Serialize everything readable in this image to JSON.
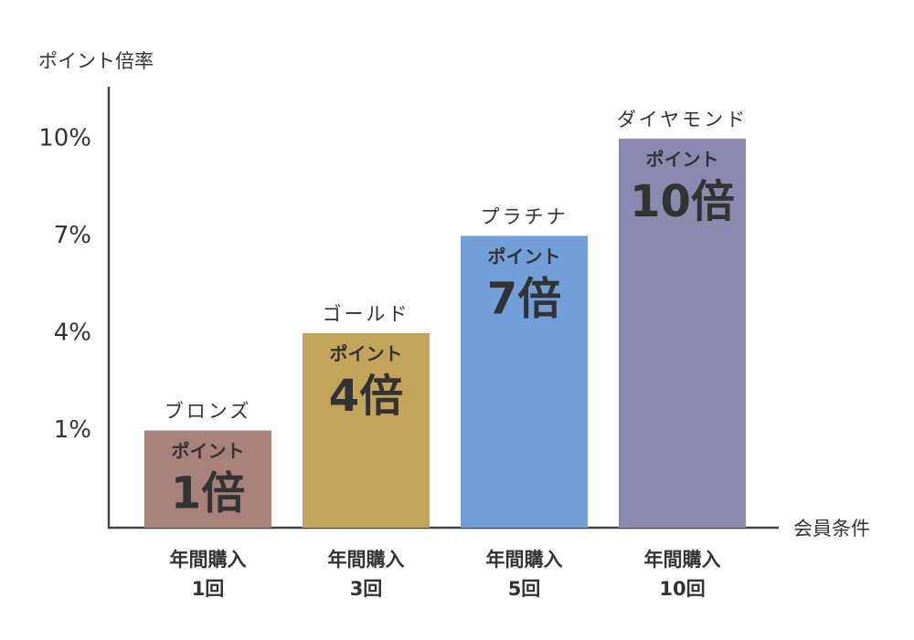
{
  "chart_data": {
    "type": "bar",
    "y_label": "ポイント倍率",
    "x_label": "会員条件",
    "categories": [
      "ブロンズ",
      "ゴールド",
      "プラチナ",
      "ダイヤモンド"
    ],
    "values": [
      1,
      4,
      7,
      10
    ],
    "value_labels": [
      "1倍",
      "4倍",
      "7倍",
      "10倍"
    ],
    "inner_label": "ポイント",
    "conditions": [
      [
        "年間購入",
        "1回"
      ],
      [
        "年間購入",
        "3回"
      ],
      [
        "年間購入",
        "5回"
      ],
      [
        "年間購入",
        "10回"
      ]
    ],
    "colors": [
      "#a8827a",
      "#c4a35a",
      "#739fd9",
      "#8a8ab0"
    ],
    "ylim": [
      -2,
      11.6
    ],
    "yticks": [
      {
        "value": 1,
        "label": "1%"
      },
      {
        "value": 4,
        "label": "4%"
      },
      {
        "value": 7,
        "label": "7%"
      },
      {
        "value": 10,
        "label": "10%"
      }
    ]
  }
}
